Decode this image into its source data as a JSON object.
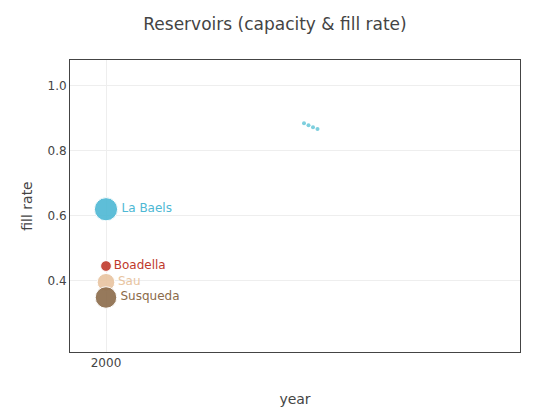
{
  "chart_data": {
    "type": "scatter",
    "title": "Reservoirs (capacity & fill rate)",
    "xlabel": "year",
    "ylabel": "fill rate",
    "xlim": [
      1998,
      2023
    ],
    "xticks": [
      2000
    ],
    "ylim": [
      0.18,
      1.08
    ],
    "yticks": [
      0.4,
      0.6,
      0.8,
      {
        "value": 1.0,
        "label": "1.0"
      }
    ],
    "grid": true,
    "series": [
      {
        "x": [
          2000,
          2000,
          2000,
          2000
        ],
        "values": [
          0.62,
          0.445,
          0.395,
          0.348
        ],
        "size": [
          280,
          60,
          160,
          240
        ],
        "labels": [
          "La Baels",
          "Boadella",
          "Sau",
          "Susqueda"
        ],
        "colors": [
          "#4db8d4",
          "#c0392b",
          "#e8c4a0",
          "#8B6B4A"
        ]
      },
      {
        "x": [
          2011.0,
          2011.25,
          2011.5,
          2011.75
        ],
        "values": [
          0.885,
          0.879,
          0.873,
          0.867
        ],
        "color": "#7ecfde"
      }
    ]
  }
}
